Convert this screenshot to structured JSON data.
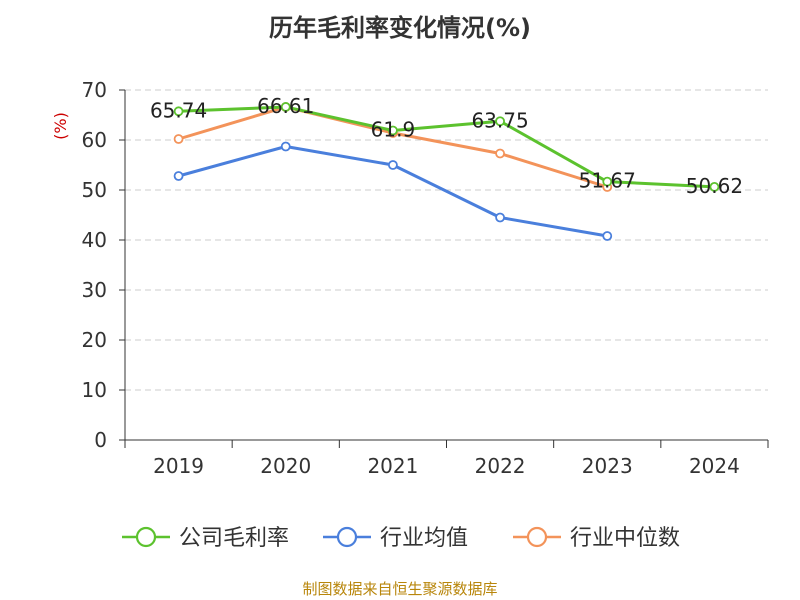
{
  "title": "历年毛利率变化情况(%)",
  "source": "制图数据来自恒生聚源数据库",
  "chart_data": {
    "type": "line",
    "title": "历年毛利率变化情况(%)",
    "ylabel": "(%)",
    "xlabel": "",
    "ylim": [
      0,
      70
    ],
    "yticks": [
      0,
      10,
      20,
      30,
      40,
      50,
      60,
      70
    ],
    "categories": [
      "2019",
      "2020",
      "2021",
      "2022",
      "2023",
      "2024"
    ],
    "grid": true,
    "legend_position": "bottom",
    "series": [
      {
        "name": "公司毛利率",
        "color": "#5cc22e",
        "values": [
          65.74,
          66.61,
          61.9,
          63.75,
          51.67,
          50.62
        ],
        "labels": [
          "65.74",
          "66.61",
          "61.9",
          "63.75",
          "51.67",
          "50.62"
        ]
      },
      {
        "name": "行业均值",
        "color": "#4a7fdc",
        "values": [
          52.8,
          58.7,
          55.0,
          44.5,
          40.8,
          null
        ]
      },
      {
        "name": "行业中位数",
        "color": "#f3935a",
        "values": [
          60.2,
          66.6,
          61.4,
          57.3,
          50.6,
          null
        ]
      }
    ]
  }
}
